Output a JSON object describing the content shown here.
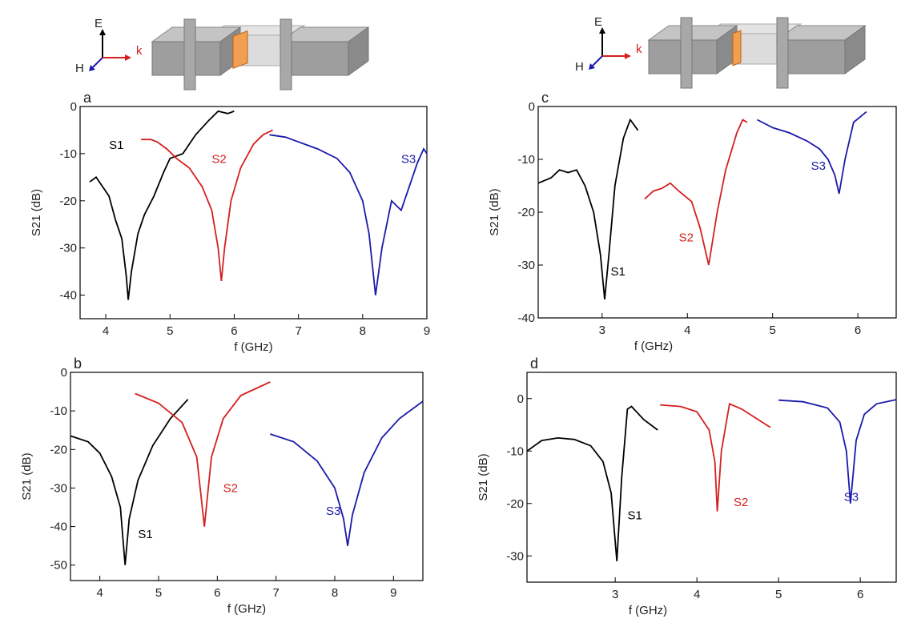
{
  "illustrations": [
    {
      "e_label": "E",
      "h_label": "H",
      "k_label": "k"
    },
    {
      "e_label": "E",
      "h_label": "H",
      "k_label": "k"
    }
  ],
  "chart_data": [
    {
      "type": "line",
      "panel_label": "a",
      "x_label": "f (GHz)",
      "y_label": "S21 (dB)",
      "xlim": [
        3.6,
        9
      ],
      "ylim": [
        -45,
        0
      ],
      "xticks": [
        4,
        5,
        6,
        7,
        8,
        9
      ],
      "yticks": [
        0,
        -10,
        -20,
        -30,
        -40
      ],
      "series": [
        {
          "name": "S1",
          "color": "#000000",
          "x": [
            3.75,
            3.85,
            3.95,
            4.05,
            4.15,
            4.25,
            4.32,
            4.35,
            4.4,
            4.5,
            4.6,
            4.75,
            4.9,
            5.0,
            5.2,
            5.4,
            5.6,
            5.75,
            5.9,
            6.0
          ],
          "values": [
            -16,
            -15,
            -17,
            -19,
            -24,
            -28,
            -36,
            -41,
            -35,
            -27,
            -23,
            -19,
            -14,
            -11,
            -10,
            -6,
            -3,
            -1,
            -1.5,
            -1
          ]
        },
        {
          "name": "S2",
          "color": "#d42020",
          "x": [
            4.55,
            4.7,
            4.8,
            4.95,
            5.1,
            5.3,
            5.5,
            5.65,
            5.75,
            5.8,
            5.85,
            5.95,
            6.1,
            6.3,
            6.45,
            6.6
          ],
          "values": [
            -7,
            -7,
            -7.5,
            -9,
            -11,
            -13,
            -17,
            -22,
            -30,
            -37,
            -30,
            -20,
            -13,
            -8,
            -6,
            -5
          ]
        },
        {
          "name": "S3",
          "color": "#1a1aaa",
          "x": [
            6.55,
            6.8,
            7.0,
            7.3,
            7.6,
            7.8,
            8.0,
            8.1,
            8.2,
            8.3,
            8.45,
            8.6,
            8.75,
            8.85,
            8.95,
            9.0
          ],
          "values": [
            -6,
            -6.5,
            -7.5,
            -9,
            -11,
            -14,
            -20,
            -27,
            -40,
            -30,
            -20,
            -22,
            -16,
            -12,
            -9,
            -10
          ]
        }
      ]
    },
    {
      "type": "line",
      "panel_label": "b",
      "x_label": "f (GHz)",
      "y_label": "S21 (dB)",
      "xlim": [
        3.5,
        9.5
      ],
      "ylim": [
        -54,
        0
      ],
      "xticks": [
        4,
        5,
        6,
        7,
        8,
        9
      ],
      "yticks": [
        0,
        -10,
        -20,
        -30,
        -40,
        -50
      ],
      "series": [
        {
          "name": "S1",
          "color": "#000000",
          "x": [
            3.5,
            3.8,
            4.0,
            4.2,
            4.35,
            4.43,
            4.5,
            4.65,
            4.9,
            5.2,
            5.5
          ],
          "values": [
            -16.5,
            -18,
            -21,
            -27,
            -35,
            -50,
            -38,
            -28,
            -19,
            -12,
            -7
          ]
        },
        {
          "name": "S2",
          "color": "#d42020",
          "x": [
            4.6,
            5.0,
            5.4,
            5.65,
            5.78,
            5.9,
            6.1,
            6.4,
            6.9
          ],
          "values": [
            -5.5,
            -8,
            -13,
            -22,
            -40,
            -22,
            -12,
            -6,
            -2.5
          ]
        },
        {
          "name": "S3",
          "color": "#1a1aaa",
          "x": [
            6.9,
            7.3,
            7.7,
            8.0,
            8.15,
            8.22,
            8.3,
            8.5,
            8.8,
            9.1,
            9.5
          ],
          "values": [
            -16,
            -18,
            -23,
            -30,
            -38,
            -45,
            -37,
            -26,
            -17,
            -12,
            -7.5
          ]
        }
      ]
    },
    {
      "type": "line",
      "panel_label": "c",
      "x_label": "f (GHz)",
      "y_label": "S21 (dB)",
      "xlim": [
        2.25,
        6.45
      ],
      "ylim": [
        -40,
        0
      ],
      "xticks": [
        3,
        4,
        5,
        6
      ],
      "yticks": [
        0,
        -10,
        -20,
        -30,
        -40
      ],
      "series": [
        {
          "name": "S1",
          "color": "#000000",
          "x": [
            2.25,
            2.4,
            2.5,
            2.6,
            2.7,
            2.8,
            2.9,
            2.98,
            3.03,
            3.08,
            3.15,
            3.25,
            3.33,
            3.42
          ],
          "values": [
            -14.5,
            -13.5,
            -12,
            -12.5,
            -12,
            -15,
            -20,
            -28,
            -36.5,
            -28,
            -15,
            -6,
            -2.5,
            -4.5
          ]
        },
        {
          "name": "S2",
          "color": "#d42020",
          "x": [
            3.5,
            3.6,
            3.7,
            3.8,
            3.9,
            4.05,
            4.15,
            4.25,
            4.35,
            4.45,
            4.58,
            4.65,
            4.7
          ],
          "values": [
            -17.5,
            -16,
            -15.5,
            -14.5,
            -16,
            -18,
            -23,
            -30,
            -20,
            -12,
            -5,
            -2.5,
            -3
          ]
        },
        {
          "name": "S3",
          "color": "#1a1aaa",
          "x": [
            4.82,
            5.0,
            5.2,
            5.4,
            5.55,
            5.65,
            5.73,
            5.78,
            5.85,
            5.95,
            6.1
          ],
          "values": [
            -2.5,
            -4,
            -5,
            -6.5,
            -8,
            -10,
            -13,
            -16.5,
            -10,
            -3,
            -1
          ]
        }
      ]
    },
    {
      "type": "line",
      "panel_label": "d",
      "x_label": "f (GHz)",
      "y_label": "S21 (dB)",
      "xlim": [
        1.92,
        6.44
      ],
      "ylim": [
        -35,
        5
      ],
      "xticks": [
        3,
        4,
        5,
        6
      ],
      "yticks": [
        0,
        -10,
        -20,
        -30
      ],
      "series": [
        {
          "name": "S1",
          "color": "#000000",
          "x": [
            1.92,
            2.1,
            2.3,
            2.5,
            2.7,
            2.85,
            2.95,
            3.02,
            3.08,
            3.15,
            3.2,
            3.35,
            3.52
          ],
          "values": [
            -10,
            -8,
            -7.5,
            -7.8,
            -9,
            -12,
            -18,
            -31,
            -15,
            -2,
            -1.5,
            -4,
            -6
          ]
        },
        {
          "name": "S2",
          "color": "#d42020",
          "x": [
            3.55,
            3.8,
            4.0,
            4.15,
            4.22,
            4.25,
            4.3,
            4.4,
            4.55,
            4.75,
            4.9
          ],
          "values": [
            -1.2,
            -1.5,
            -2.5,
            -6,
            -12,
            -21.5,
            -10,
            -1,
            -2,
            -4,
            -5.5
          ]
        },
        {
          "name": "S3",
          "color": "#1a1aaa",
          "x": [
            5.0,
            5.3,
            5.6,
            5.75,
            5.83,
            5.88,
            5.95,
            6.05,
            6.2,
            6.44
          ],
          "values": [
            -0.3,
            -0.6,
            -1.8,
            -4.5,
            -10,
            -20,
            -8,
            -3,
            -1,
            -0.2
          ]
        }
      ]
    }
  ]
}
